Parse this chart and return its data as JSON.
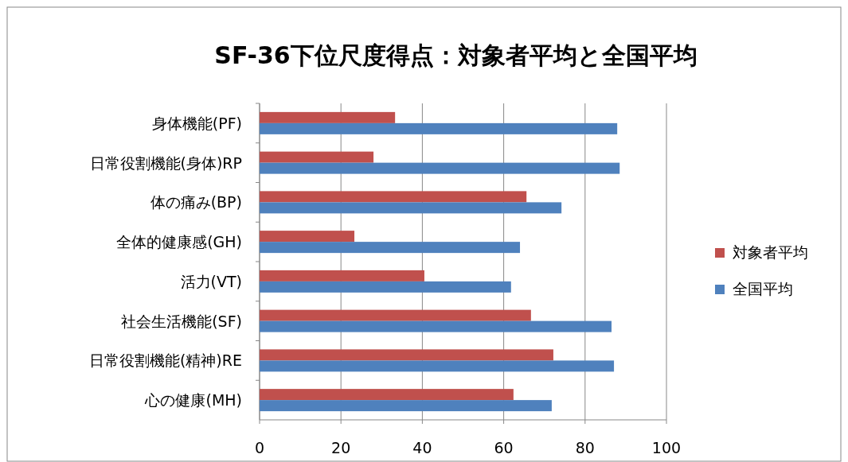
{
  "chart_data": {
    "type": "bar",
    "orientation": "horizontal",
    "title": "SF-36下位尺度得点：対象者平均と全国平均",
    "categories": [
      "身体機能(PF)",
      "日常役割機能(身体)RP",
      "体の痛み(BP)",
      "全体的健康感(GH)",
      "活力(VT)",
      "社会生活機能(SF)",
      "日常役割機能(精神)RE",
      "心の健康(MH)"
    ],
    "series": [
      {
        "name": "対象者平均",
        "color": "#c0504d",
        "values": [
          33.3,
          28.0,
          65.6,
          23.3,
          40.5,
          66.7,
          72.2,
          62.4
        ]
      },
      {
        "name": "全国平均",
        "color": "#4f81bd",
        "values": [
          87.9,
          88.5,
          74.2,
          64.0,
          61.8,
          86.5,
          87.1,
          71.8
        ]
      }
    ],
    "xlim": [
      0,
      100
    ],
    "xticks": [
      0,
      20,
      40,
      60,
      80,
      100
    ],
    "grid": "x",
    "legend": "right"
  }
}
